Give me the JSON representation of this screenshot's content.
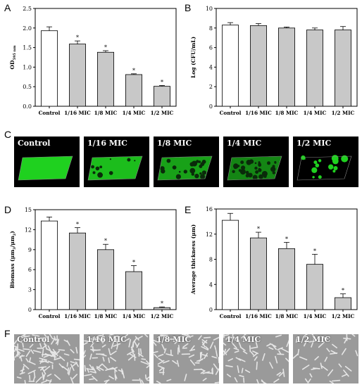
{
  "panels": {
    "A": "A",
    "B": "B",
    "C": "C",
    "D": "D",
    "E": "E",
    "F": "F"
  },
  "colors": {
    "control_bar": "#ffffff",
    "treatment_bar": "#c8c8c8",
    "clsm_green": "#1fd11f",
    "sem_gray": "#9a9a9a"
  },
  "chart_data": [
    {
      "panel": "A",
      "type": "bar",
      "categories": [
        "Control",
        "1/16 MIC",
        "1/8 MIC",
        "1/4 MIC",
        "1/2 MIC"
      ],
      "values": [
        1.93,
        1.59,
        1.38,
        0.81,
        0.51
      ],
      "errors": [
        0.1,
        0.08,
        0.04,
        0.02,
        0.02
      ],
      "significance": [
        "",
        "*",
        "*",
        "*",
        "*"
      ],
      "ylabel_main": "OD",
      "ylabel_sub": "595 nm",
      "ylim": [
        0,
        2.5
      ],
      "yticks": [
        0.0,
        0.5,
        1.0,
        1.5,
        2.0,
        2.5
      ],
      "ytick_labels": [
        "0.0",
        "0.5",
        "1.0",
        "1.5",
        "2.0",
        "2.5"
      ]
    },
    {
      "panel": "B",
      "type": "bar",
      "categories": [
        "Control",
        "1/16 MIC",
        "1/8 MIC",
        "1/4 MIC",
        "1/2 MIC"
      ],
      "values": [
        8.3,
        8.25,
        8.0,
        7.8,
        7.8
      ],
      "errors": [
        0.25,
        0.2,
        0.1,
        0.2,
        0.35
      ],
      "significance": [
        "",
        "",
        "",
        "",
        ""
      ],
      "ylabel": "Log (CFU/mL)",
      "ylim": [
        0,
        10
      ],
      "yticks": [
        0,
        2,
        4,
        6,
        8,
        10
      ],
      "ytick_labels": [
        "0",
        "2",
        "4",
        "6",
        "8",
        "10"
      ]
    },
    {
      "panel": "D",
      "type": "bar",
      "categories": [
        "Control",
        "1/16 MIC",
        "1/8 MIC",
        "1/4 MIC",
        "1/2 MIC"
      ],
      "values": [
        13.3,
        11.5,
        9.0,
        5.7,
        0.3
      ],
      "errors": [
        0.6,
        0.8,
        0.8,
        0.9,
        0.1
      ],
      "significance": [
        "",
        "*",
        "*",
        "*",
        "*"
      ],
      "ylabel_main": "Biomass (μm",
      "ylabel_sub": "3",
      "ylabel_mid": "/μm",
      "ylabel_sub2": "2",
      "ylabel_end": ")",
      "ylim": [
        0,
        15
      ],
      "yticks": [
        0,
        3,
        6,
        9,
        12,
        15
      ],
      "ytick_labels": [
        "0",
        "3",
        "6",
        "9",
        "12",
        "15"
      ]
    },
    {
      "panel": "E",
      "type": "bar",
      "categories": [
        "Control",
        "1/16 MIC",
        "1/8 MIC",
        "1/4 MIC",
        "1/2 MIC"
      ],
      "values": [
        14.2,
        11.4,
        9.7,
        7.2,
        1.9
      ],
      "errors": [
        1.1,
        0.9,
        1.0,
        1.6,
        0.6
      ],
      "significance": [
        "",
        "*",
        "*",
        "*",
        "*"
      ],
      "ylabel": "Average thickness (μm)",
      "ylim": [
        0,
        16
      ],
      "yticks": [
        0,
        4,
        8,
        12,
        16
      ],
      "ytick_labels": [
        "0",
        "4",
        "8",
        "12",
        "16"
      ]
    }
  ],
  "clsm_tiles": [
    {
      "label": "Control",
      "density": 1.0
    },
    {
      "label": "1/16 MIC",
      "density": 0.85
    },
    {
      "label": "1/8 MIC",
      "density": 0.65
    },
    {
      "label": "1/4 MIC",
      "density": 0.45
    },
    {
      "label": "1/2 MIC",
      "density": 0.15
    }
  ],
  "sem_tiles": [
    {
      "label": "Control",
      "density": 1.0
    },
    {
      "label": "1/16 MIC",
      "density": 0.8
    },
    {
      "label": "1/8 MIC",
      "density": 0.6
    },
    {
      "label": "1/4 MIC",
      "density": 0.45
    },
    {
      "label": "1/2 MIC",
      "density": 0.25
    }
  ]
}
